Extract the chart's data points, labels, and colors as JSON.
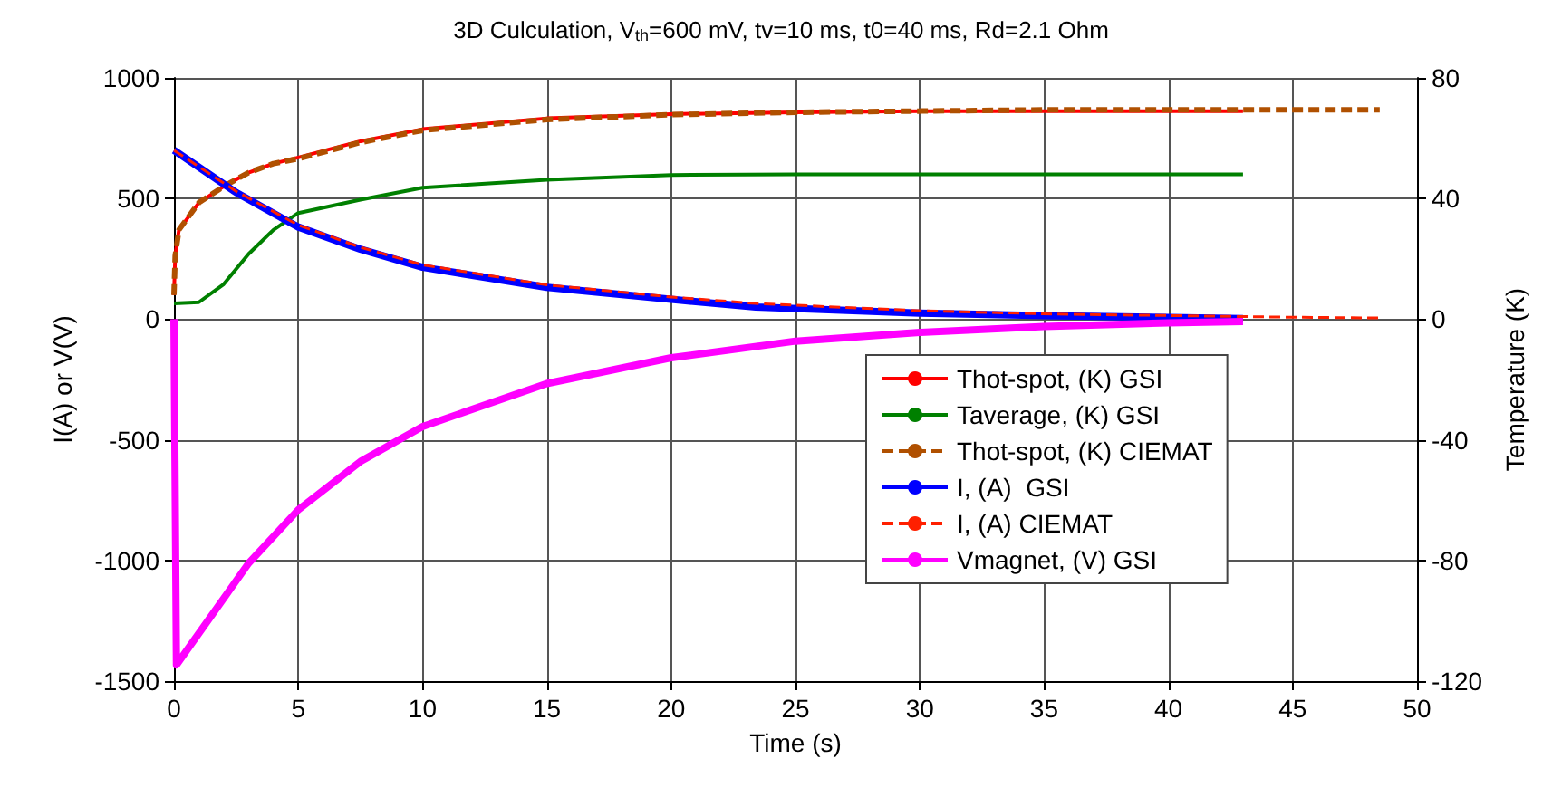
{
  "chart_data": {
    "type": "line",
    "title": "3D Culculation, V$_{th}$=600 mV, tv=10 ms, t0=40 ms, Rd=2.1 Ohm",
    "xlabel": "Time (s)",
    "ylabel": "I(A) or V(V)",
    "y2label": "Temperature (K)",
    "xlim": [
      0,
      50
    ],
    "xticks": [
      0,
      5,
      10,
      15,
      20,
      25,
      30,
      35,
      40,
      45,
      50
    ],
    "ylim": [
      -1500,
      1000
    ],
    "yticks": [
      -1500,
      -1000,
      -500,
      0,
      500,
      1000
    ],
    "y2lim": [
      -120,
      80
    ],
    "y2ticks": [
      -120,
      -80,
      -40,
      0,
      40,
      80
    ],
    "grid": true,
    "legend": "right",
    "marker": "none",
    "series": [
      {
        "name": "Thot-spot, (K) GSI",
        "color": "#ff0000",
        "axis": "y2",
        "line_style": "solid",
        "x": [
          0,
          0.05,
          0.2,
          1,
          2,
          3,
          4,
          5,
          7.5,
          10,
          15,
          20,
          25,
          30,
          35,
          40,
          43
        ],
        "values": [
          8,
          21,
          29.6,
          38.6,
          44,
          48.6,
          51.6,
          53.6,
          59,
          63,
          66.6,
          68,
          68.6,
          69,
          69,
          69,
          69
        ]
      },
      {
        "name": "Taverage, (K) GSI",
        "color": "#008000",
        "axis": "y2",
        "line_style": "solid",
        "x": [
          0,
          1,
          2,
          3,
          4,
          5,
          7.5,
          10,
          15,
          20,
          25,
          30,
          35,
          40,
          43
        ],
        "values": [
          5.2,
          5.6,
          11.6,
          21.6,
          29.6,
          35.2,
          39.6,
          43.6,
          46.2,
          47.8,
          48,
          48,
          48,
          48,
          48
        ]
      },
      {
        "name": "Thot-spot, (K) CIEMAT",
        "color": "#b05000",
        "axis": "y2",
        "line_style": "dashed",
        "x": [
          0,
          0.05,
          0.2,
          1,
          2,
          3,
          4,
          5,
          7.5,
          10,
          15,
          20,
          25,
          30,
          35,
          40,
          45,
          48.5
        ],
        "values": [
          8,
          21,
          29.6,
          38.6,
          44,
          48.6,
          51.6,
          53.2,
          58.6,
          62.6,
          66.2,
          67.8,
          68.6,
          69,
          69.4,
          69.4,
          69.4,
          69.4
        ]
      },
      {
        "name": "I, (A)  GSI",
        "color": "#0000ff",
        "axis": "y",
        "line_style": "solid",
        "x": [
          0,
          2.5,
          5,
          7.5,
          10,
          15,
          20,
          23.4,
          30,
          35,
          40,
          43
        ],
        "values": [
          700,
          525,
          382,
          290,
          215,
          132,
          82,
          50,
          25,
          15,
          7,
          2
        ]
      },
      {
        "name": "I, (A) CIEMAT",
        "color": "#ff2000",
        "axis": "y",
        "line_style": "dashed",
        "x": [
          0,
          2.5,
          5,
          7.5,
          10,
          15,
          20,
          23.4,
          30,
          35,
          40,
          45,
          48.5
        ],
        "values": [
          700,
          530,
          390,
          298,
          225,
          142,
          92,
          65,
          35,
          22,
          15,
          8,
          5
        ]
      },
      {
        "name": "Vmagnet, (V) GSI",
        "color": "#ff00ff",
        "axis": "y",
        "line_style": "solid",
        "x": [
          0,
          0.1,
          3,
          5,
          7.5,
          10,
          15,
          20,
          25,
          30,
          35,
          40,
          43
        ],
        "values": [
          0,
          -1433,
          -1012,
          -790,
          -590,
          -445,
          -267,
          -160,
          -91,
          -55,
          -30,
          -15,
          -10
        ]
      }
    ]
  }
}
